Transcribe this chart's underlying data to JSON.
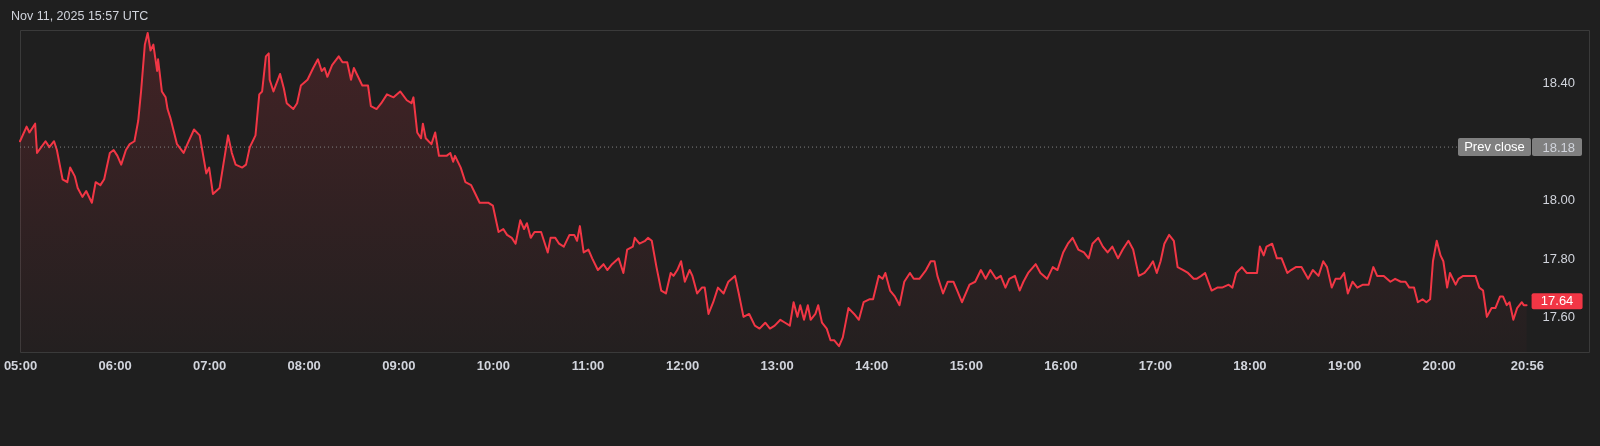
{
  "chart_data": {
    "type": "area",
    "x": [
      5.0,
      5.07,
      5.1,
      5.16,
      5.18,
      5.27,
      5.31,
      5.36,
      5.39,
      5.45,
      5.5,
      5.53,
      5.58,
      5.61,
      5.66,
      5.7,
      5.76,
      5.8,
      5.85,
      5.89,
      5.95,
      5.99,
      6.03,
      6.07,
      6.12,
      6.16,
      6.21,
      6.25,
      6.28,
      6.32,
      6.35,
      6.38,
      6.41,
      6.45,
      6.46,
      6.5,
      6.54,
      6.56,
      6.59,
      6.66,
      6.73,
      6.77,
      6.84,
      6.9,
      6.97,
      7.0,
      7.04,
      7.11,
      7.15,
      7.2,
      7.24,
      7.28,
      7.35,
      7.39,
      7.43,
      7.49,
      7.53,
      7.56,
      7.6,
      7.63,
      7.64,
      7.68,
      7.75,
      7.79,
      7.82,
      7.89,
      7.93,
      7.97,
      8.04,
      8.1,
      8.15,
      8.19,
      8.22,
      8.25,
      8.3,
      8.37,
      8.41,
      8.46,
      8.5,
      8.53,
      8.59,
      8.62,
      8.68,
      8.71,
      8.77,
      8.82,
      8.88,
      8.95,
      9.02,
      9.09,
      9.14,
      9.16,
      9.2,
      9.24,
      9.26,
      9.29,
      9.35,
      9.39,
      9.43,
      9.51,
      9.55,
      9.58,
      9.6,
      9.66,
      9.71,
      9.77,
      9.8,
      9.86,
      9.95,
      10.0,
      10.06,
      10.11,
      10.15,
      10.2,
      10.24,
      10.29,
      10.33,
      10.36,
      10.4,
      10.44,
      10.51,
      10.58,
      10.61,
      10.66,
      10.7,
      10.75,
      10.81,
      10.86,
      10.89,
      10.92,
      10.96,
      11.01,
      11.05,
      11.11,
      11.17,
      11.21,
      11.26,
      11.33,
      11.38,
      11.42,
      11.48,
      11.5,
      11.55,
      11.61,
      11.64,
      11.68,
      11.73,
      11.78,
      11.83,
      11.88,
      11.91,
      11.95,
      11.99,
      12.03,
      12.08,
      12.11,
      12.16,
      12.21,
      12.24,
      12.28,
      12.33,
      12.38,
      12.44,
      12.49,
      12.56,
      12.6,
      12.65,
      12.71,
      12.77,
      12.82,
      12.88,
      12.93,
      12.98,
      13.04,
      13.09,
      13.14,
      13.18,
      13.22,
      13.25,
      13.29,
      13.33,
      13.36,
      13.41,
      13.44,
      13.48,
      13.53,
      13.57,
      13.61,
      13.66,
      13.7,
      13.76,
      13.82,
      13.87,
      13.92,
      13.98,
      14.02,
      14.08,
      14.12,
      14.15,
      14.2,
      14.25,
      14.3,
      14.35,
      14.41,
      14.45,
      14.51,
      14.58,
      14.63,
      14.67,
      14.7,
      14.76,
      14.81,
      14.87,
      14.91,
      14.96,
      15.04,
      15.1,
      15.16,
      15.21,
      15.26,
      15.32,
      15.37,
      15.42,
      15.46,
      15.52,
      15.57,
      15.61,
      15.66,
      15.74,
      15.79,
      15.86,
      15.92,
      15.97,
      16.03,
      16.08,
      16.13,
      16.19,
      16.25,
      16.3,
      16.34,
      16.4,
      16.45,
      16.5,
      16.55,
      16.61,
      16.66,
      16.72,
      16.77,
      16.83,
      16.89,
      16.94,
      16.98,
      17.02,
      17.06,
      17.1,
      17.15,
      17.2,
      17.24,
      17.3,
      17.35,
      17.41,
      17.44,
      17.49,
      17.53,
      17.6,
      17.66,
      17.71,
      17.78,
      17.82,
      17.86,
      17.92,
      17.97,
      18.03,
      18.08,
      18.11,
      18.15,
      18.18,
      18.24,
      18.29,
      18.34,
      18.4,
      18.44,
      18.49,
      18.55,
      18.62,
      18.67,
      18.73,
      18.78,
      18.82,
      18.87,
      18.91,
      18.96,
      19.0,
      19.04,
      19.09,
      19.14,
      19.2,
      19.26,
      19.31,
      19.35,
      19.42,
      19.49,
      19.54,
      19.6,
      19.65,
      19.69,
      19.74,
      19.78,
      19.83,
      19.87,
      19.91,
      19.94,
      19.98,
      20.02,
      20.05,
      20.09,
      20.12,
      20.18,
      20.21,
      20.26,
      20.32,
      20.39,
      20.43,
      20.47,
      20.51,
      20.56,
      20.6,
      20.65,
      20.68,
      20.72,
      20.75,
      20.79,
      20.83,
      20.88,
      20.9,
      20.93
    ],
    "series": [
      {
        "color": "#f23645",
        "values": [
          18.2,
          18.25,
          18.23,
          18.26,
          18.16,
          18.2,
          18.18,
          18.2,
          18.17,
          18.07,
          18.06,
          18.11,
          18.08,
          18.04,
          18.01,
          18.03,
          17.99,
          18.06,
          18.05,
          18.07,
          18.16,
          18.17,
          18.15,
          18.12,
          18.17,
          18.19,
          18.2,
          18.27,
          18.37,
          18.53,
          18.57,
          18.51,
          18.53,
          18.44,
          18.48,
          18.37,
          18.35,
          18.31,
          18.28,
          18.19,
          18.16,
          18.19,
          18.24,
          18.22,
          18.09,
          18.11,
          18.02,
          18.04,
          18.12,
          18.22,
          18.16,
          18.12,
          18.11,
          18.12,
          18.18,
          18.22,
          18.36,
          18.37,
          18.49,
          18.5,
          18.41,
          18.37,
          18.43,
          18.38,
          18.33,
          18.31,
          18.33,
          18.39,
          18.41,
          18.45,
          18.48,
          18.44,
          18.45,
          18.42,
          18.46,
          18.49,
          18.47,
          18.47,
          18.41,
          18.45,
          18.41,
          18.39,
          18.39,
          18.32,
          18.31,
          18.33,
          18.36,
          18.35,
          18.37,
          18.34,
          18.33,
          18.35,
          18.23,
          18.21,
          18.26,
          18.21,
          18.19,
          18.23,
          18.15,
          18.15,
          18.16,
          18.13,
          18.15,
          18.11,
          18.06,
          18.05,
          18.03,
          17.99,
          17.99,
          17.98,
          17.89,
          17.9,
          17.88,
          17.87,
          17.85,
          17.93,
          17.9,
          17.92,
          17.87,
          17.89,
          17.89,
          17.82,
          17.87,
          17.87,
          17.85,
          17.84,
          17.88,
          17.88,
          17.86,
          17.91,
          17.82,
          17.83,
          17.8,
          17.76,
          17.78,
          17.76,
          17.78,
          17.8,
          17.75,
          17.83,
          17.84,
          17.87,
          17.85,
          17.86,
          17.87,
          17.86,
          17.77,
          17.69,
          17.68,
          17.75,
          17.74,
          17.76,
          17.79,
          17.72,
          17.76,
          17.74,
          17.68,
          17.7,
          17.7,
          17.61,
          17.65,
          17.7,
          17.68,
          17.72,
          17.74,
          17.68,
          17.6,
          17.61,
          17.57,
          17.56,
          17.58,
          17.56,
          17.57,
          17.59,
          17.58,
          17.57,
          17.65,
          17.6,
          17.64,
          17.59,
          17.64,
          17.59,
          17.61,
          17.64,
          17.58,
          17.56,
          17.52,
          17.52,
          17.5,
          17.53,
          17.63,
          17.61,
          17.59,
          17.65,
          17.66,
          17.66,
          17.74,
          17.73,
          17.75,
          17.69,
          17.67,
          17.64,
          17.72,
          17.75,
          17.73,
          17.73,
          17.76,
          17.79,
          17.79,
          17.74,
          17.68,
          17.72,
          17.72,
          17.69,
          17.65,
          17.71,
          17.72,
          17.76,
          17.73,
          17.76,
          17.73,
          17.74,
          17.7,
          17.73,
          17.74,
          17.69,
          17.72,
          17.75,
          17.78,
          17.75,
          17.73,
          17.77,
          17.76,
          17.82,
          17.85,
          17.87,
          17.83,
          17.82,
          17.8,
          17.85,
          17.87,
          17.84,
          17.82,
          17.84,
          17.8,
          17.83,
          17.86,
          17.83,
          17.74,
          17.75,
          17.77,
          17.79,
          17.75,
          17.79,
          17.85,
          17.88,
          17.86,
          17.77,
          17.76,
          17.75,
          17.73,
          17.73,
          17.74,
          17.75,
          17.69,
          17.7,
          17.7,
          17.71,
          17.7,
          17.75,
          17.77,
          17.75,
          17.75,
          17.75,
          17.84,
          17.81,
          17.84,
          17.85,
          17.8,
          17.8,
          17.75,
          17.76,
          17.77,
          17.77,
          17.73,
          17.76,
          17.74,
          17.79,
          17.77,
          17.7,
          17.73,
          17.73,
          17.75,
          17.68,
          17.72,
          17.7,
          17.71,
          17.71,
          17.77,
          17.74,
          17.74,
          17.72,
          17.73,
          17.72,
          17.72,
          17.7,
          17.7,
          17.65,
          17.66,
          17.65,
          17.66,
          17.79,
          17.86,
          17.81,
          17.79,
          17.7,
          17.75,
          17.71,
          17.73,
          17.74,
          17.74,
          17.74,
          17.7,
          17.69,
          17.6,
          17.63,
          17.63,
          17.67,
          17.67,
          17.64,
          17.65,
          17.59,
          17.63,
          17.65,
          17.64,
          17.64
        ]
      }
    ],
    "xlim": [
      5,
      21.59
    ],
    "xticks": [
      {
        "value": 5,
        "label": "05:00"
      },
      {
        "value": 6,
        "label": "06:00"
      },
      {
        "value": 7,
        "label": "07:00"
      },
      {
        "value": 8,
        "label": "08:00"
      },
      {
        "value": 9,
        "label": "09:00"
      },
      {
        "value": 10,
        "label": "10:00"
      },
      {
        "value": 11,
        "label": "11:00"
      },
      {
        "value": 12,
        "label": "12:00"
      },
      {
        "value": 13,
        "label": "13:00"
      },
      {
        "value": 14,
        "label": "14:00"
      },
      {
        "value": 15,
        "label": "15:00"
      },
      {
        "value": 16,
        "label": "16:00"
      },
      {
        "value": 17,
        "label": "17:00"
      },
      {
        "value": 18,
        "label": "18:00"
      },
      {
        "value": 19,
        "label": "19:00"
      },
      {
        "value": 20,
        "label": "20:00"
      },
      {
        "value": 20.9333,
        "label": "20:56"
      }
    ],
    "ylim": [
      17.48,
      18.58
    ],
    "yticks": [
      {
        "value": 17.6,
        "label": "17.60"
      },
      {
        "value": 17.8,
        "label": "17.80"
      },
      {
        "value": 18.0,
        "label": "18.00"
      },
      {
        "value": 18.18,
        "label": "18.18"
      },
      {
        "value": 18.4,
        "label": "18.40"
      }
    ],
    "ref_lines": [
      {
        "axis": "y",
        "value": 18.18,
        "label": "Prev close",
        "color": "#808080",
        "line_style": "dotted"
      }
    ],
    "annotations": [
      "Nov 11, 2025 15:57 UTC",
      {
        "text": "17.64",
        "x": 20.93,
        "y": 17.64
      }
    ],
    "grid": false
  }
}
